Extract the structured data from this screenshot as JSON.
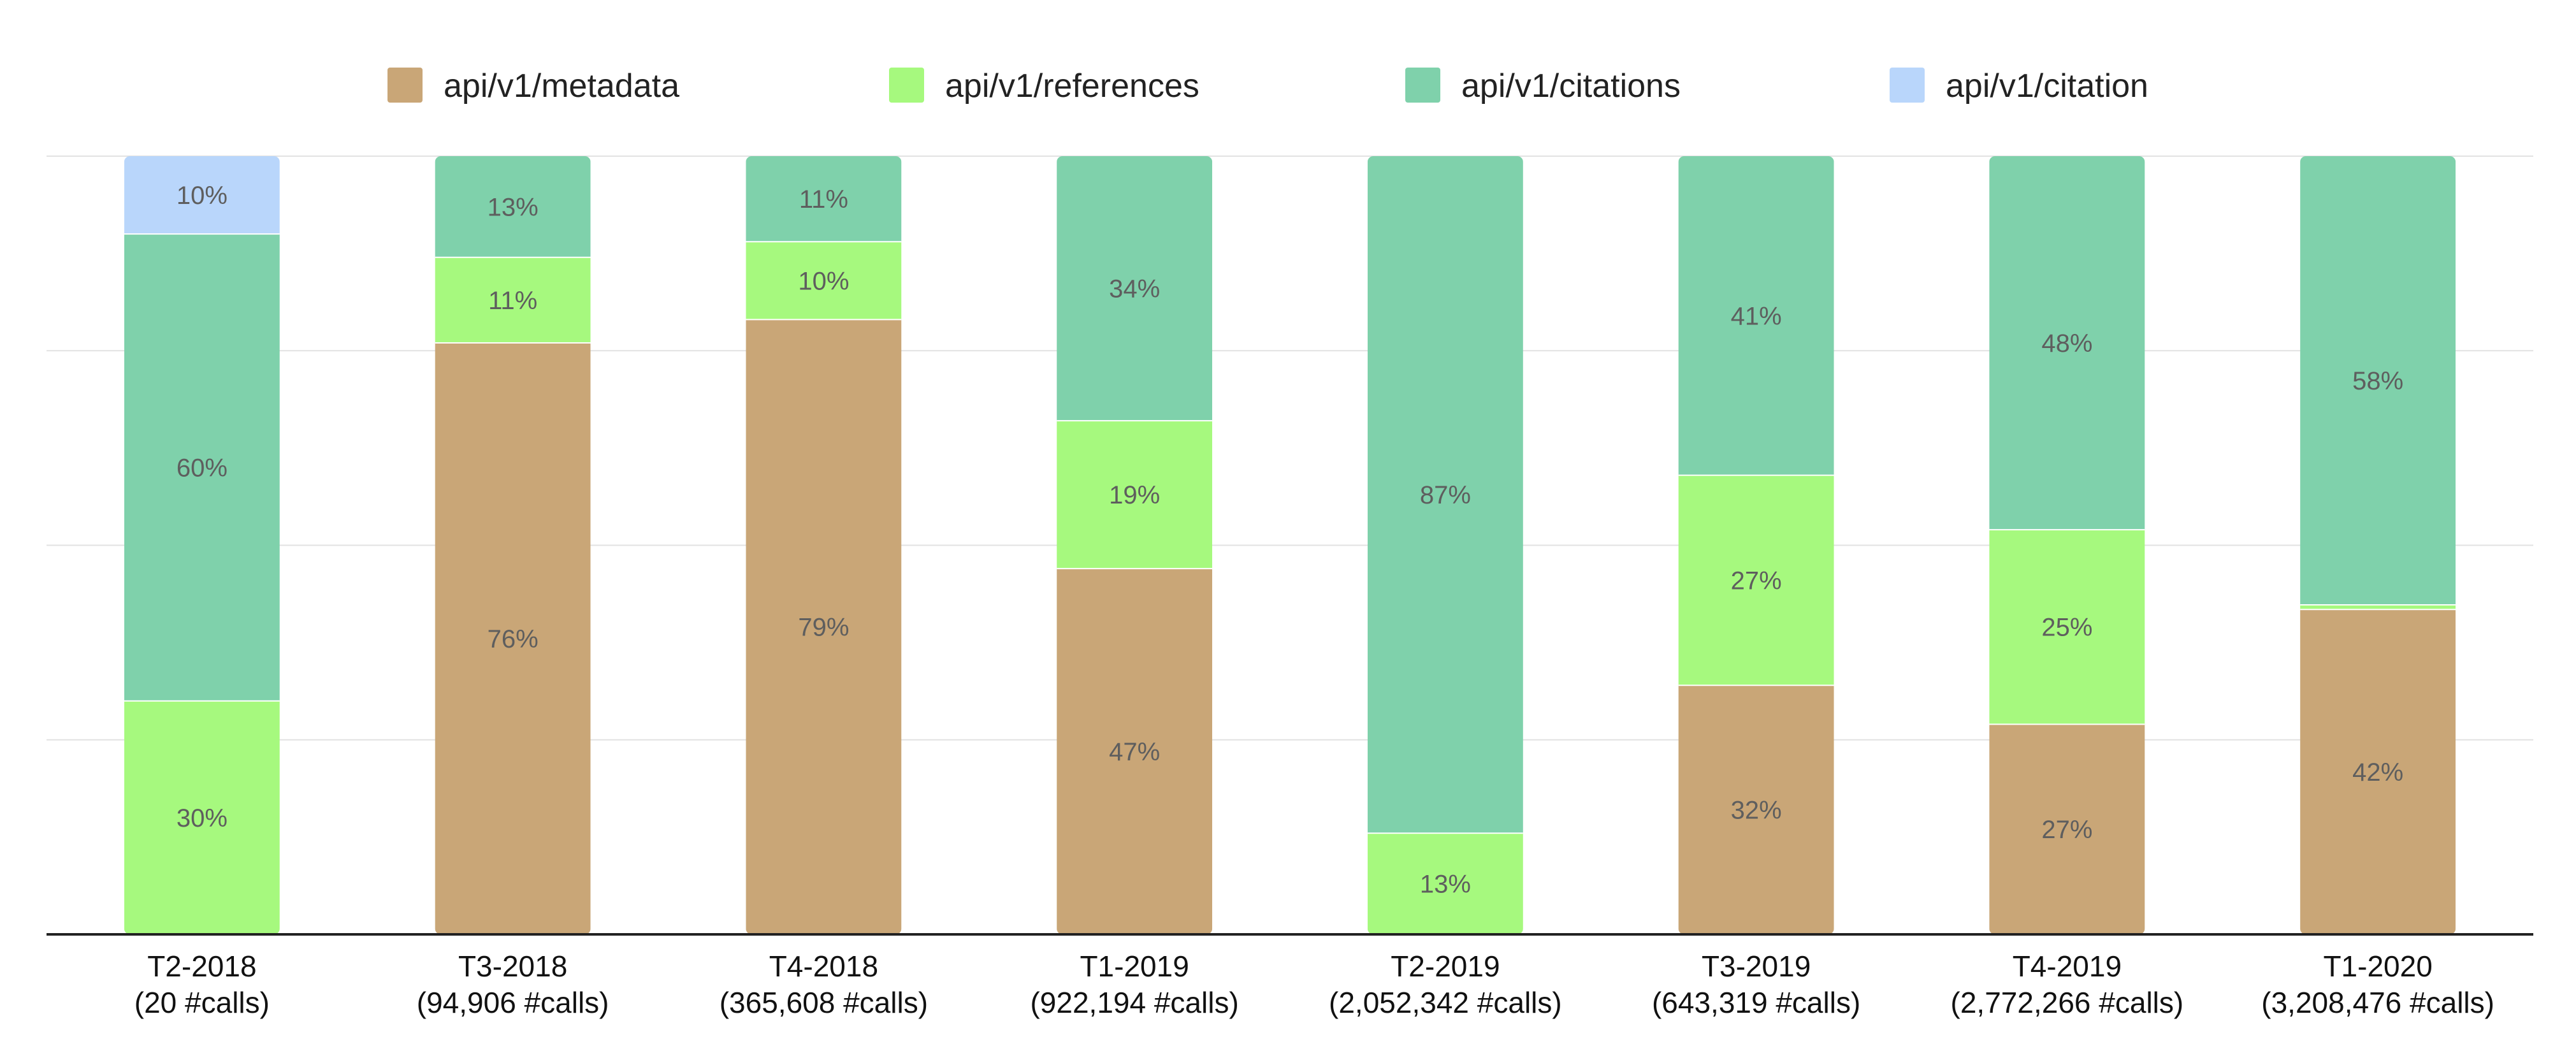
{
  "chart_data": {
    "type": "bar",
    "stacked": true,
    "grid": true,
    "legend_position": "top",
    "ylim": [
      0,
      100
    ],
    "categories": [
      "T2-2018\n(20 #calls)",
      "T3-2018\n(94,906 #calls)",
      "T4-2018\n(365,608 #calls)",
      "T1-2019\n(922,194 #calls)",
      "T2-2019\n(2,052,342 #calls)",
      "T3-2019\n(643,319 #calls)",
      "T4-2019\n(2,772,266 #calls)",
      "T1-2020\n(3,208,476 #calls)"
    ],
    "series": [
      {
        "name": "api/v1/metadata",
        "color": "#c9a677",
        "values": [
          0,
          76,
          79,
          47,
          0,
          32,
          27,
          42
        ],
        "labels": [
          "",
          "76%",
          "79%",
          "47%",
          "",
          "32%",
          "27%",
          "42%"
        ]
      },
      {
        "name": "api/v1/references",
        "color": "#a6f97e",
        "values": [
          30,
          11,
          10,
          19,
          13,
          27,
          25,
          0.6
        ],
        "labels": [
          "30%",
          "11%",
          "10%",
          "19%",
          "13%",
          "27%",
          "25%",
          ""
        ]
      },
      {
        "name": "api/v1/citations",
        "color": "#7fd1ab",
        "values": [
          60,
          13,
          11,
          34,
          87,
          41,
          48,
          58
        ],
        "labels": [
          "60%",
          "13%",
          "11%",
          "34%",
          "87%",
          "41%",
          "48%",
          "58%"
        ]
      },
      {
        "name": "api/v1/citation",
        "color": "#b9d6fb",
        "values": [
          10,
          0,
          0,
          0,
          0,
          0,
          0,
          0
        ],
        "labels": [
          "10%",
          "",
          "",
          "",
          "",
          "",
          "",
          ""
        ]
      }
    ]
  }
}
